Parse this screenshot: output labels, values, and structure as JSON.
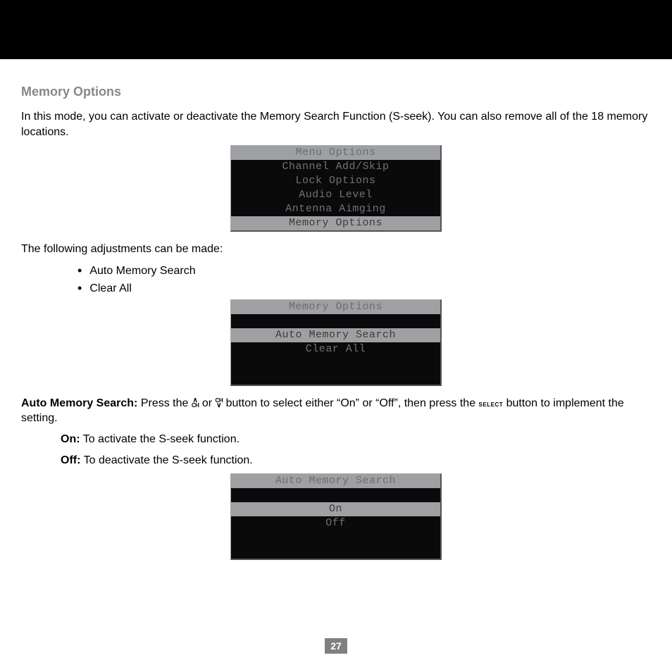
{
  "colors": {
    "top_band": "#000000",
    "page_bg": "#ffffff",
    "section_title": "#888888",
    "body_text": "#000000",
    "lcd_header_bg": "#9ea0a3",
    "lcd_header_fg": "#6b6d70",
    "lcd_dark_bg": "#0a0a0a",
    "lcd_dark_fg": "#707274",
    "lcd_selected_bg": "#9ea0a3",
    "lcd_selected_fg": "#3a3b3d",
    "page_num_bg": "#808080",
    "page_num_fg": "#ffffff"
  },
  "section_title": "Memory Options",
  "intro": "In this mode, you can activate or deactivate the Memory Search Function (S-seek). You can also remove all of the 18 memory locations.",
  "adjust_intro": "The following adjustments can be made:",
  "bullets": {
    "0": "Auto Memory Search",
    "1": "Clear All"
  },
  "ams": {
    "label": "Auto Memory Search:",
    "part1": " Press the ",
    "part2": " or ",
    "part3": " button to select either “On” or “Off”, then press the ",
    "part4": " button to implement the setting.",
    "select_label": "SELECT"
  },
  "on_line": {
    "label": "On:",
    "text": " To activate the S-seek function."
  },
  "off_line": {
    "label": "Off:",
    "text": " To deactivate the S-seek function."
  },
  "screen1": {
    "title": "Menu Options",
    "row1": "Channel Add/Skip",
    "row2": "Lock Options",
    "row3": "Audio Level",
    "row4": "Antenna Aimging",
    "selected": "Memory Options"
  },
  "screen2": {
    "title": "Memory Options",
    "selected": "Auto Memory Search",
    "row1": "Clear All"
  },
  "screen3": {
    "title": "Auto Memory Search",
    "selected": "On",
    "row1": "Off"
  },
  "page_number": "27"
}
